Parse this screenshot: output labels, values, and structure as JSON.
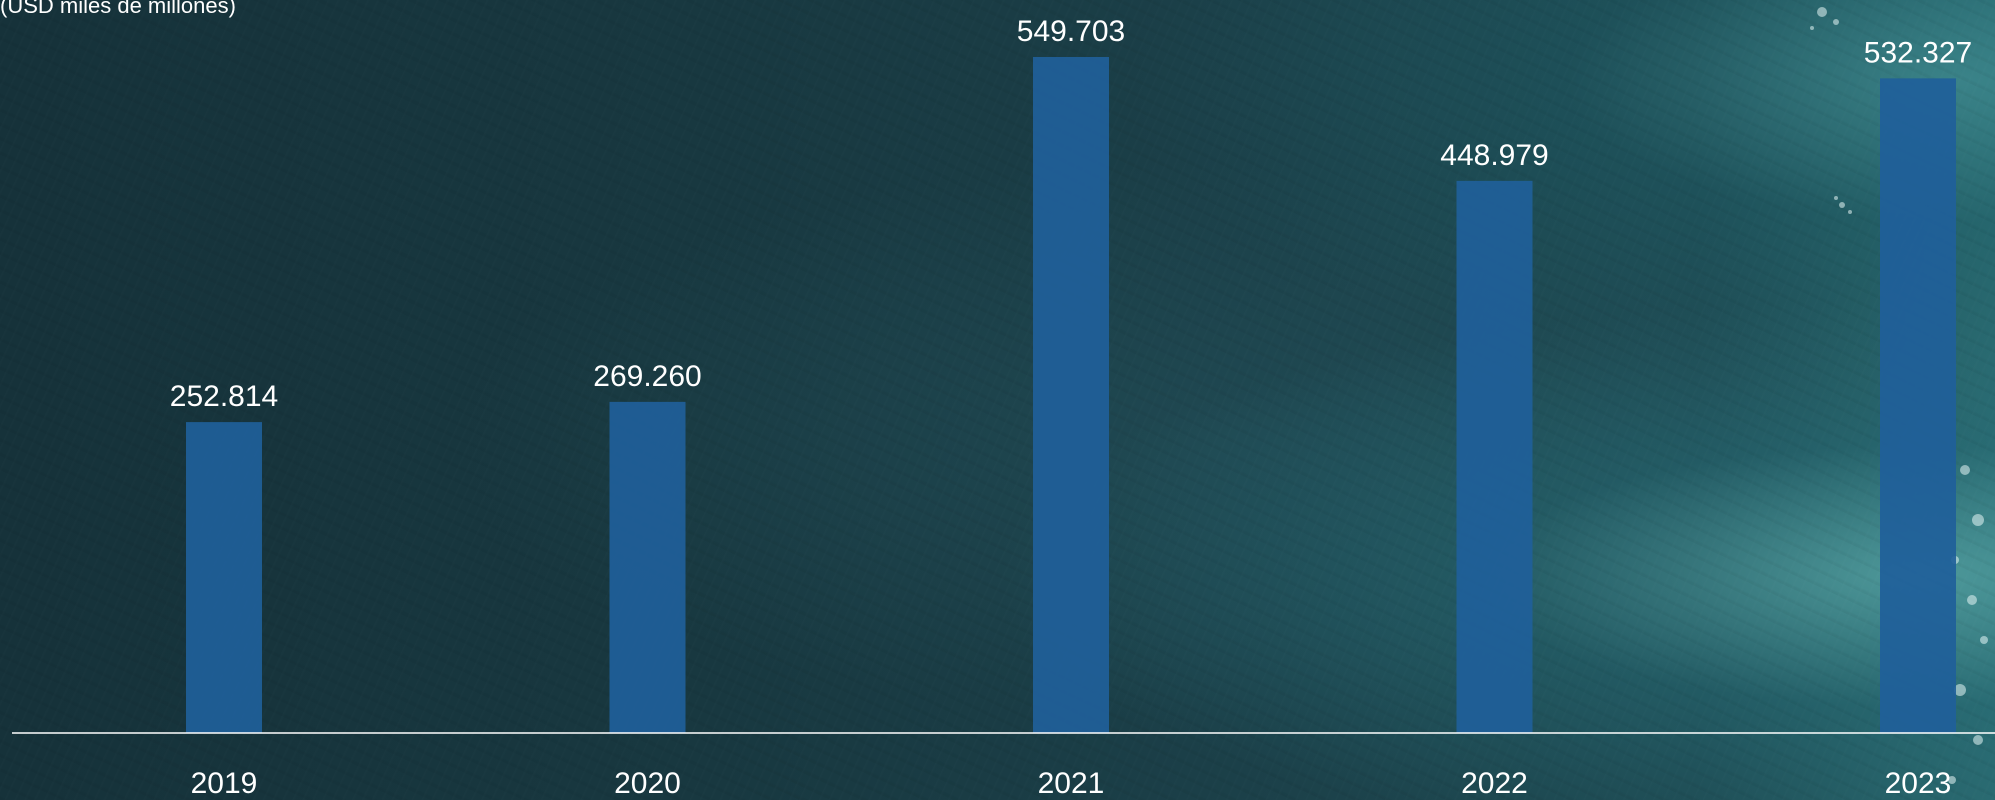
{
  "unit_label": "(USD miles de millones)",
  "colors": {
    "bar": "#1f5f9a",
    "axis": "#ffffff",
    "text": "#ffffff",
    "background": "#16343c"
  },
  "chart_data": {
    "type": "bar",
    "categories": [
      "2019",
      "2020",
      "2021",
      "2022",
      "2023"
    ],
    "values": [
      252.814,
      269.26,
      549.703,
      448.979,
      532.327
    ],
    "data_labels": [
      "252.814",
      "269.260",
      "549.703",
      "448.979",
      "532.327"
    ],
    "title": "",
    "xlabel": "",
    "ylabel": "(USD miles de millones)",
    "ylim": [
      0,
      600
    ],
    "grid": false,
    "legend": "none"
  }
}
